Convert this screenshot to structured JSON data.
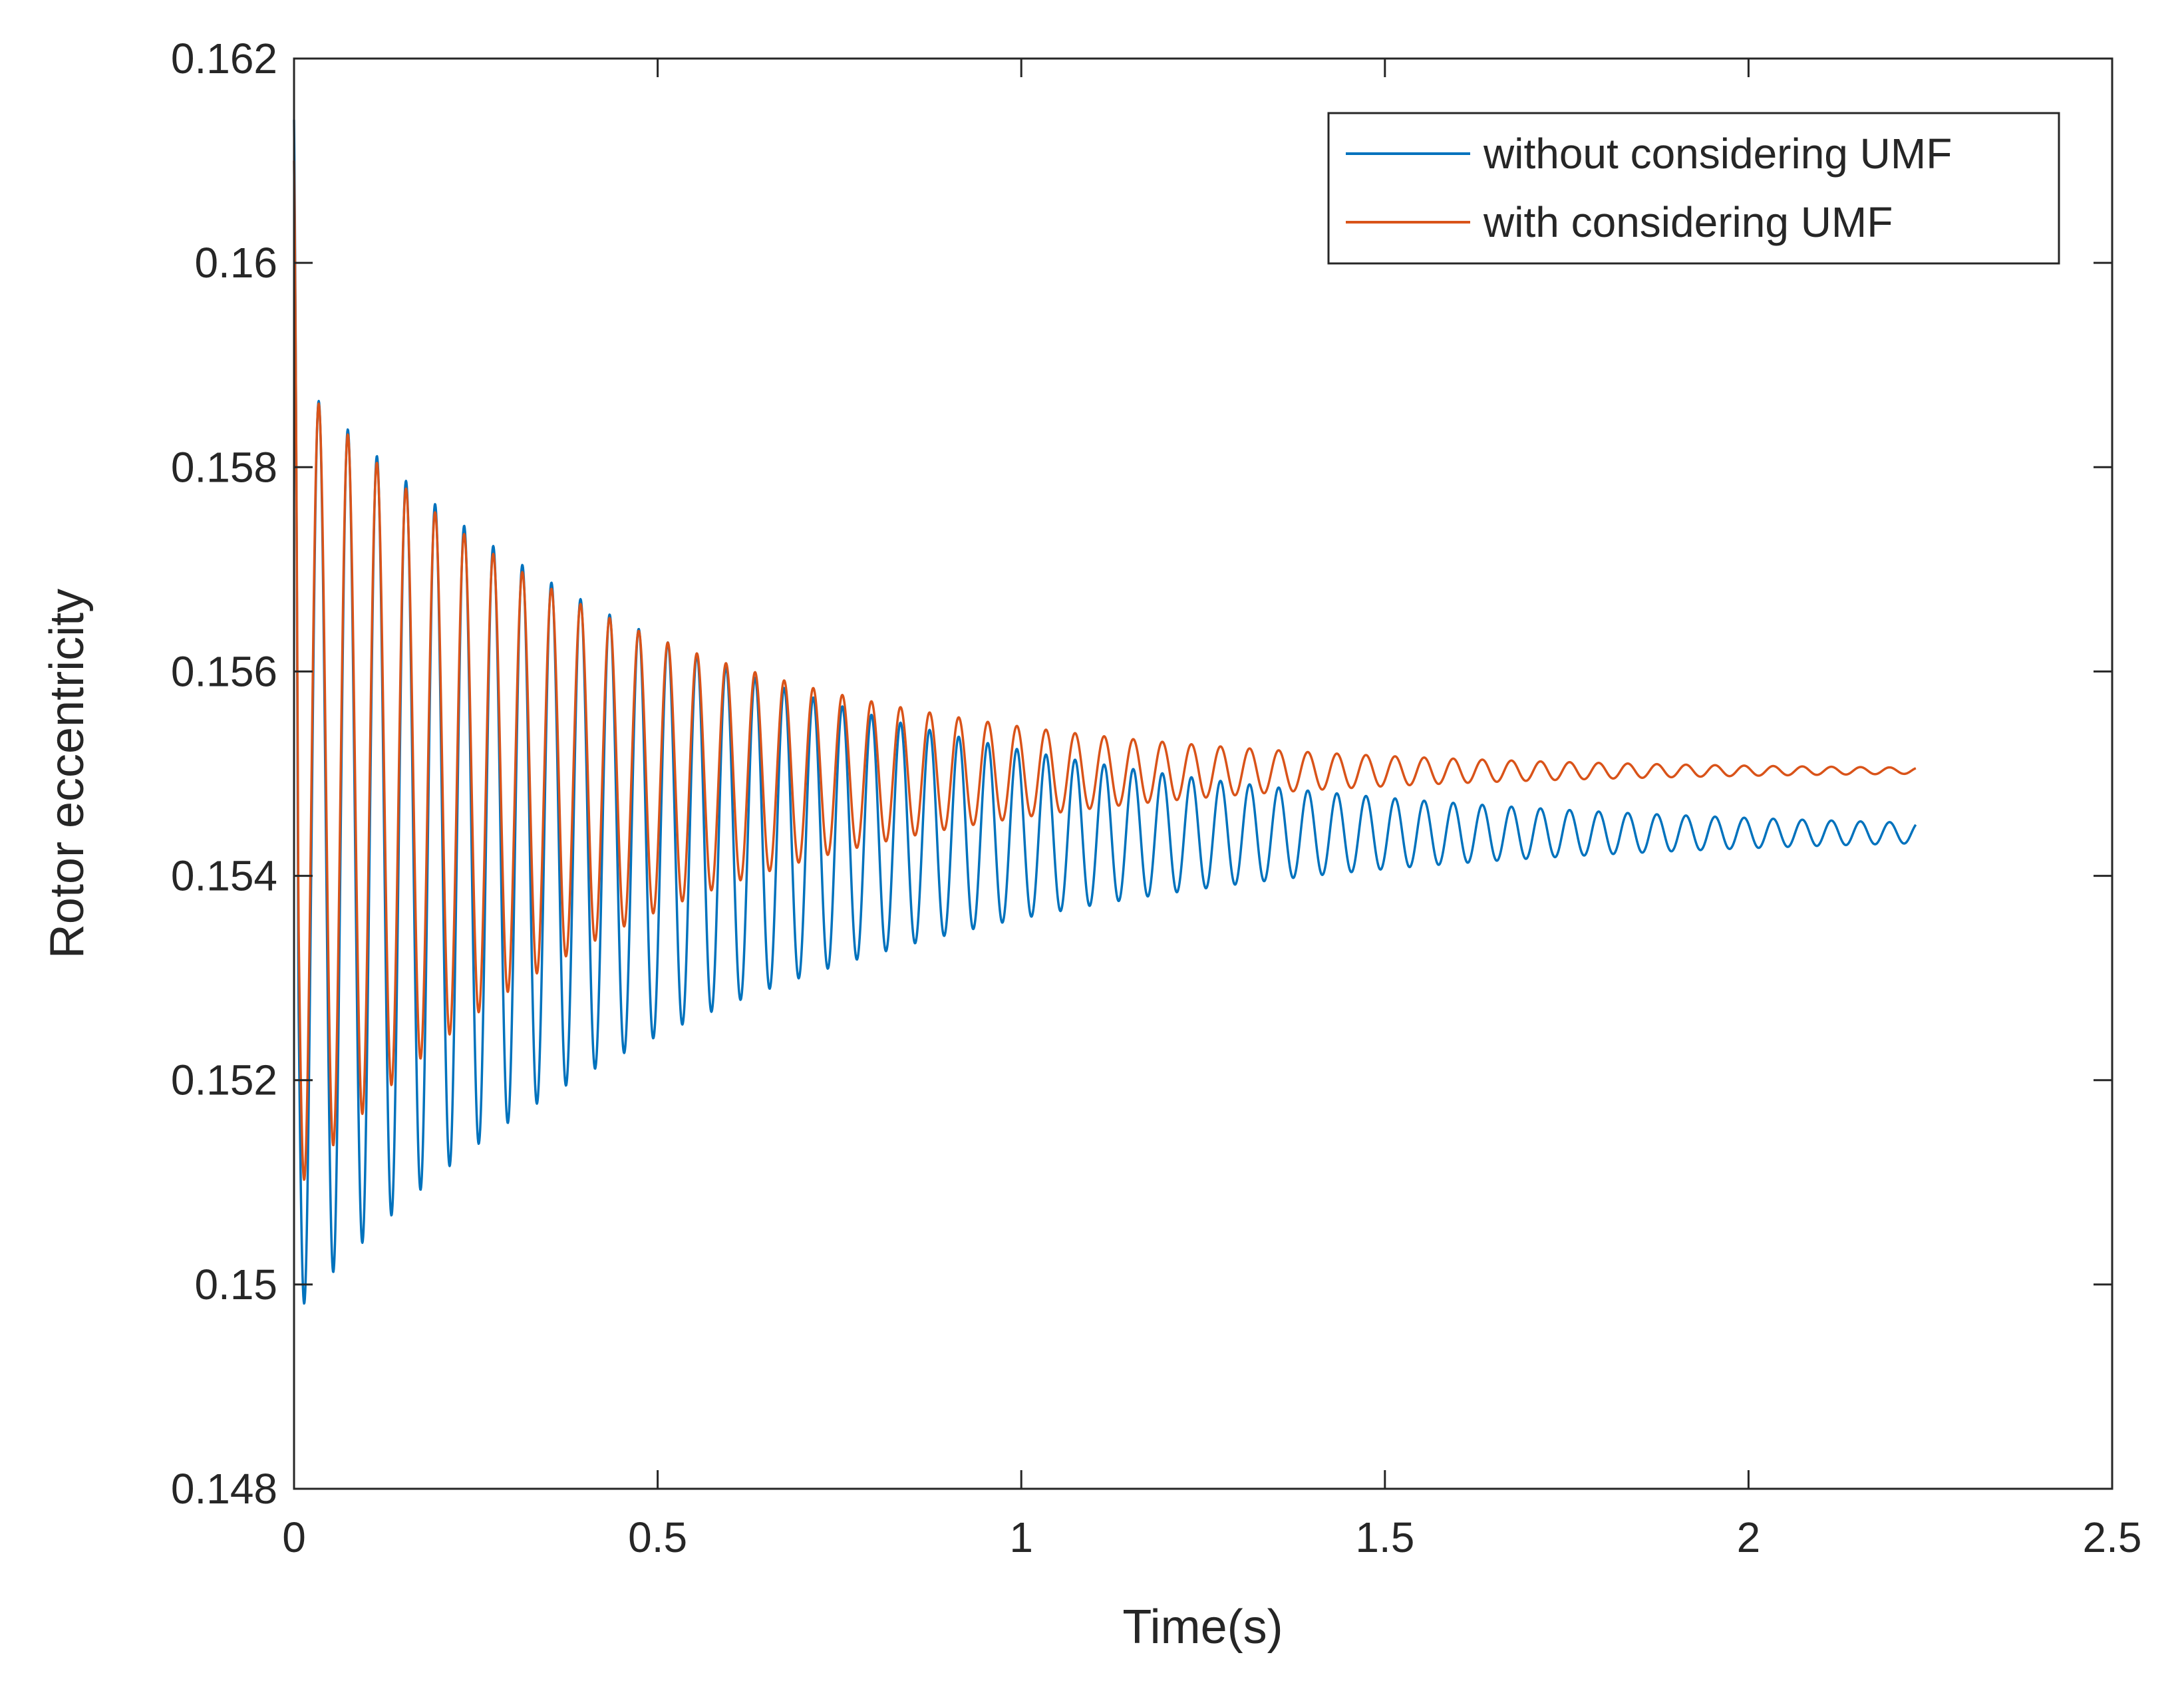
{
  "chart_data": {
    "type": "line",
    "title": "",
    "xlabel": "Time(s)",
    "ylabel": "Rotor eccentricity",
    "xlim": [
      0,
      2.5
    ],
    "ylim": [
      0.148,
      0.162
    ],
    "x_ticks": [
      0,
      0.5,
      1,
      1.5,
      2,
      2.5
    ],
    "x_tick_labels": [
      "0",
      "0.5",
      "1",
      "1.5",
      "2",
      "2.5"
    ],
    "y_ticks": [
      0.148,
      0.15,
      0.152,
      0.154,
      0.156,
      0.158,
      0.16,
      0.162
    ],
    "y_tick_labels": [
      "0.148",
      "0.15",
      "0.152",
      "0.154",
      "0.156",
      "0.158",
      "0.16",
      "0.162"
    ],
    "grid": false,
    "legend_position": "top-right",
    "t_end": 2.23,
    "oscillation_period": 0.04,
    "series": [
      {
        "name": "without considering UMF",
        "color": "#0072BD",
        "start_value": 0.1614,
        "settle_value": 0.15442,
        "first_max": 0.1589,
        "first_min": 0.1497,
        "final_amplitude": 0.0001
      },
      {
        "name": "with considering UMF",
        "color": "#D95319",
        "start_value": 0.161,
        "settle_value": 0.15503,
        "first_max": 0.1589,
        "first_min": 0.1509,
        "final_amplitude": 3e-05
      }
    ]
  }
}
